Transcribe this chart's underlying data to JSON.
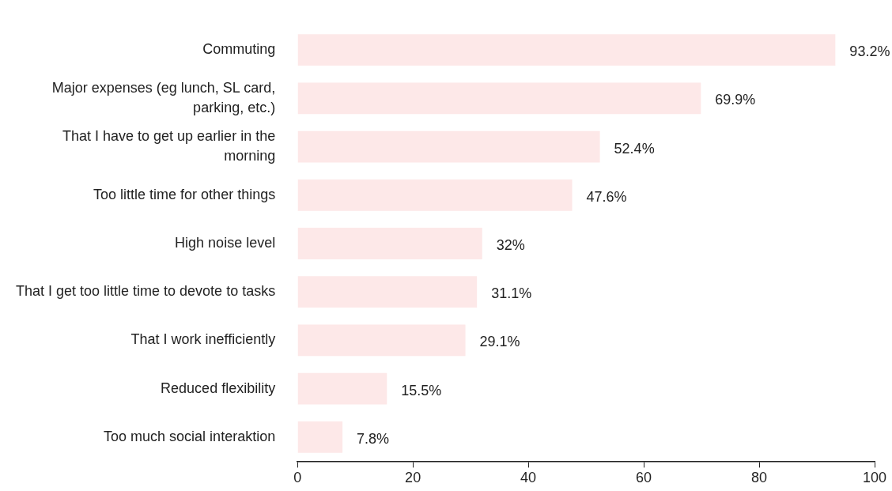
{
  "chart_data": {
    "type": "bar",
    "orientation": "horizontal",
    "categories": [
      "Commuting",
      "Major expenses (eg lunch, SL card, parking, etc.)",
      "That I have to get up earlier in the morning",
      "Too little time for other things",
      "High noise level",
      "That I get too little time to devote to tasks",
      "That I work inefficiently",
      "Reduced flexibility",
      "Too much social interaktion"
    ],
    "values": [
      93.2,
      69.9,
      52.4,
      47.6,
      32,
      31.1,
      29.1,
      15.5,
      7.8
    ],
    "value_labels": [
      "93.2%",
      "69.9%",
      "52.4%",
      "47.6%",
      "32%",
      "31.1%",
      "29.1%",
      "15.5%",
      "7.8%"
    ],
    "color": "#fde8e8",
    "xlim": [
      0,
      100
    ],
    "xticks": [
      0,
      20,
      40,
      60,
      80,
      100
    ],
    "grid": false,
    "legend": false
  }
}
